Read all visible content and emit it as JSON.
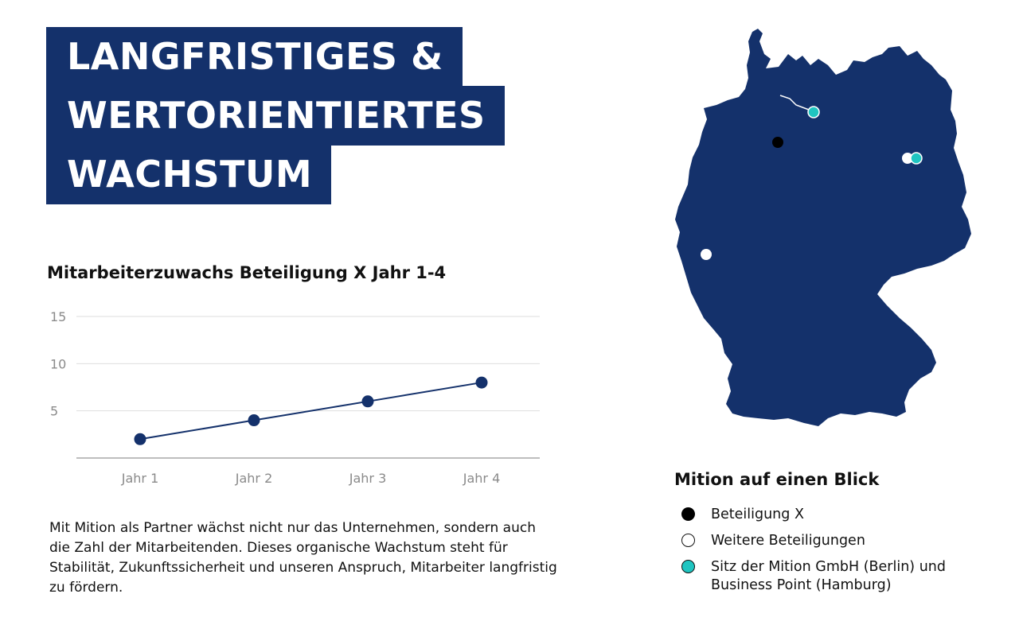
{
  "headline": {
    "lines": [
      "LANGFRISTIGES &",
      "WERTORIENTIERTES",
      "WACHSTUM"
    ]
  },
  "colors": {
    "brand_navy": "#14316b",
    "teal": "#1fc5c1",
    "black": "#000000",
    "white": "#ffffff",
    "grid": "#dedede",
    "axis": "#a9a9a9",
    "tick_text": "#8a8a8a"
  },
  "chart_data": {
    "type": "line",
    "title": "Mitarbeiterzuwachs Beteiligung X Jahr 1-4",
    "categories": [
      "Jahr 1",
      "Jahr 2",
      "Jahr 3",
      "Jahr 4"
    ],
    "series": [
      {
        "values": [
          2,
          4,
          6,
          8
        ],
        "color": "#14316b"
      }
    ],
    "y_ticks": [
      5,
      10,
      15
    ],
    "ylim": [
      0,
      15
    ],
    "grid": true,
    "xlabel": "",
    "ylabel": ""
  },
  "body_text": "Mit Mition als Partner wächst nicht nur das Unternehmen, sondern auch die Zahl der Mitarbeitenden. Dieses organische Wachstum steht für Stabilität, Zukunftssicherheit und unseren Anspruch, Mitarbeiter langfristig zu fördern.",
  "map": {
    "region": "Deutschland",
    "fill": "#14316b",
    "markers": [
      {
        "kind": "beteiligung_x",
        "color": "#000000"
      },
      {
        "kind": "weitere",
        "color": "#ffffff"
      },
      {
        "kind": "weitere",
        "color": "#ffffff"
      },
      {
        "kind": "sitz",
        "color": "#1fc5c1"
      },
      {
        "kind": "sitz",
        "color": "#1fc5c1"
      }
    ]
  },
  "legend": {
    "title": "Mition auf einen Blick",
    "items": [
      {
        "label": "Beteiligung X",
        "color": "#000000"
      },
      {
        "label": "Weitere Beteiligungen",
        "color": "#ffffff"
      },
      {
        "label": "Sitz der Mition GmbH (Berlin) und Business Point (Hamburg)",
        "color": "#1fc5c1"
      }
    ]
  }
}
